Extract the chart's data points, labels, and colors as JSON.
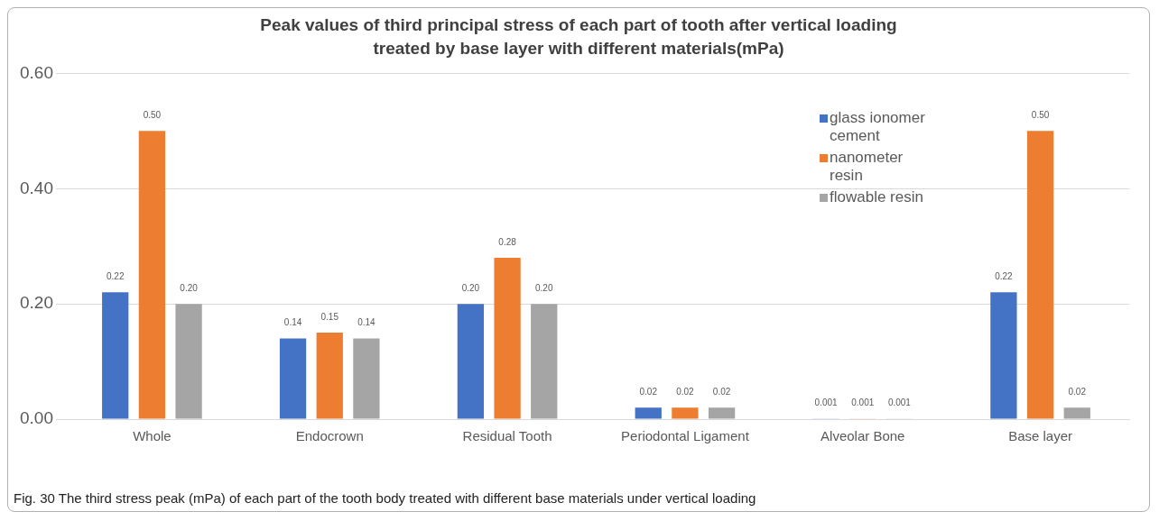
{
  "chart_data": {
    "type": "bar",
    "title": "Peak values of third principal stress of each part of tooth after vertical loading treated by base layer with different materials(mPa)",
    "categories": [
      "Whole",
      "Endocrown",
      "Residual Tooth",
      "Periodontal Ligament",
      "Alveolar Bone",
      "Base layer"
    ],
    "series": [
      {
        "name": "glass ionomer cement",
        "color": "#4472c4",
        "values": [
          0.22,
          0.14,
          0.2,
          0.02,
          0.001,
          0.22
        ],
        "value_labels": [
          "0.22",
          "0.14",
          "0.20",
          "0.02",
          "0.001",
          "0.22"
        ]
      },
      {
        "name": "nanometer resin",
        "color": "#ed7d31",
        "values": [
          0.5,
          0.15,
          0.28,
          0.02,
          0.001,
          0.5
        ],
        "value_labels": [
          "0.50",
          "0.15",
          "0.28",
          "0.02",
          "0.001",
          "0.50"
        ]
      },
      {
        "name": "flowable resin",
        "color": "#a5a5a5",
        "values": [
          0.2,
          0.14,
          0.2,
          0.02,
          0.001,
          0.02
        ],
        "value_labels": [
          "0.20",
          "0.14",
          "0.20",
          "0.02",
          "0.001",
          "0.02"
        ]
      }
    ],
    "ylim": [
      0,
      0.6
    ],
    "yticks": [
      {
        "value": 0,
        "label": "0.00"
      },
      {
        "value": 0.2,
        "label": "0.20"
      },
      {
        "value": 0.4,
        "label": "0.40"
      },
      {
        "value": 0.6,
        "label": "0.60"
      }
    ],
    "grid": "y",
    "legend": "top right",
    "annotations": [
      "Fig. 30 The third stress peak (mPa) of each part of the tooth body treated with different base materials under vertical loading"
    ]
  }
}
